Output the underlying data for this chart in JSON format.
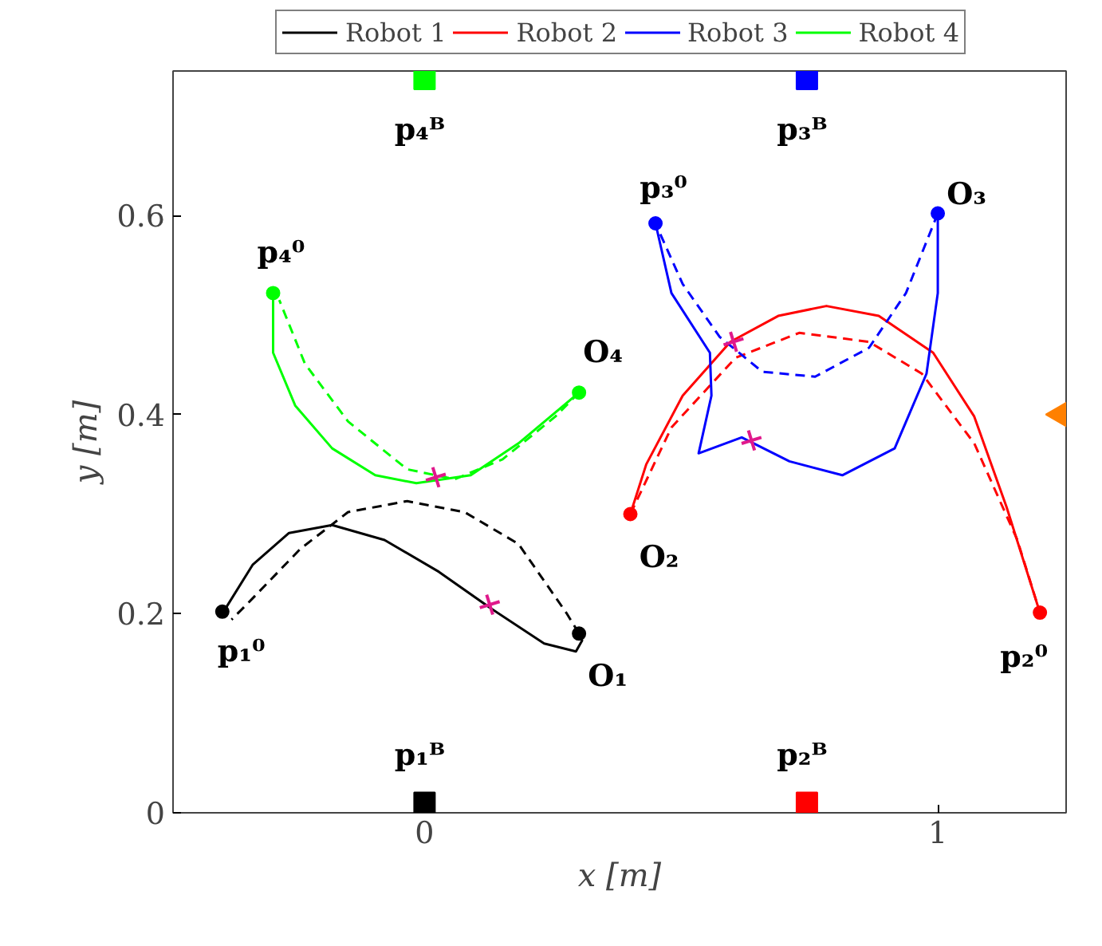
{
  "chart_data": {
    "type": "line",
    "xlabel": "x [m]",
    "ylabel": "y [m]",
    "xlim": [
      -0.49,
      1.25
    ],
    "ylim": [
      0,
      0.745
    ],
    "xticks": [
      0,
      1
    ],
    "yticks": [
      0,
      0.2,
      0.4,
      0.6
    ],
    "grid": false,
    "legend": "top",
    "line_style": "solid",
    "series": [
      {
        "name": "Robot 1",
        "color": "#000000",
        "x": [
          -0.394,
          -0.388,
          -0.335,
          -0.264,
          -0.18,
          -0.078,
          0.028,
          0.13,
          0.233,
          0.295,
          0.307,
          0.301
        ],
        "values": [
          0.202,
          0.205,
          0.249,
          0.281,
          0.289,
          0.274,
          0.242,
          0.205,
          0.17,
          0.162,
          0.173,
          0.18
        ]
      },
      {
        "color": "#000000",
        "line_style": "dashed",
        "x": [
          0.301,
          0.276,
          0.183,
          0.078,
          -0.034,
          -0.149,
          -0.242,
          -0.345,
          -0.376
        ],
        "values": [
          0.18,
          0.201,
          0.27,
          0.302,
          0.313,
          0.302,
          0.265,
          0.21,
          0.194
        ]
      },
      {
        "name": "Robot 2",
        "color": "#ff0000",
        "x": [
          1.199,
          1.134,
          1.071,
          0.991,
          0.885,
          0.783,
          0.689,
          0.596,
          0.503,
          0.432,
          0.401
        ],
        "values": [
          0.201,
          0.307,
          0.398,
          0.462,
          0.499,
          0.509,
          0.499,
          0.473,
          0.419,
          0.35,
          0.3
        ]
      },
      {
        "color": "#ff0000",
        "line_style": "dashed",
        "x": [
          0.401,
          0.481,
          0.606,
          0.73,
          0.866,
          0.969,
          1.071,
          1.155,
          1.199
        ],
        "values": [
          0.3,
          0.387,
          0.457,
          0.482,
          0.473,
          0.441,
          0.371,
          0.274,
          0.201
        ]
      },
      {
        "name": "Robot 3",
        "color": "#0000ff",
        "x": [
          0.45,
          0.481,
          0.556,
          0.559,
          0.534,
          0.618,
          0.711,
          0.814,
          0.916,
          0.978,
          1.0,
          1.0
        ],
        "values": [
          0.592,
          0.522,
          0.462,
          0.419,
          0.361,
          0.377,
          0.353,
          0.339,
          0.366,
          0.441,
          0.522,
          0.602
        ]
      },
      {
        "color": "#0000ff",
        "line_style": "dashed",
        "x": [
          1.0,
          0.938,
          0.866,
          0.761,
          0.658,
          0.575,
          0.503,
          0.45
        ],
        "values": [
          0.602,
          0.522,
          0.467,
          0.438,
          0.443,
          0.478,
          0.531,
          0.592
        ]
      },
      {
        "name": "Robot 4",
        "color": "#00ff00",
        "x": [
          -0.295,
          -0.295,
          -0.252,
          -0.18,
          -0.096,
          -0.016,
          0.09,
          0.183,
          0.301
        ],
        "values": [
          0.522,
          0.462,
          0.409,
          0.366,
          0.339,
          0.331,
          0.339,
          0.371,
          0.422
        ]
      },
      {
        "color": "#00ff00",
        "line_style": "dashed",
        "x": [
          0.301,
          0.255,
          0.152,
          0.059,
          -0.034,
          -0.149,
          -0.233,
          -0.283
        ],
        "values": [
          0.422,
          0.398,
          0.355,
          0.335,
          0.345,
          0.393,
          0.451,
          0.515
        ]
      },
      {
        "type": "scatter",
        "marker": "circle",
        "x": [
          -0.394,
          1.199,
          0.45,
          -0.295
        ],
        "values": [
          0.202,
          0.201,
          0.592,
          0.522
        ],
        "colors": [
          "#000000",
          "#ff0000",
          "#0000ff",
          "#00ff00"
        ]
      },
      {
        "type": "scatter",
        "marker": "circle",
        "x": [
          0.301,
          0.401,
          1.0,
          0.301
        ],
        "values": [
          0.18,
          0.3,
          0.602,
          0.422
        ],
        "colors": [
          "#000000",
          "#ff0000",
          "#0000ff",
          "#00ff00"
        ]
      },
      {
        "type": "scatter",
        "marker": "cross",
        "color": "#e0198c",
        "x": [
          0.127,
          0.602,
          0.637,
          0.022
        ],
        "values": [
          0.209,
          0.473,
          0.374,
          0.337
        ]
      },
      {
        "type": "scatter",
        "marker": "square",
        "x": [
          0,
          0.745,
          0.745,
          0
        ],
        "values": [
          0.01,
          0.01,
          0.737,
          0.737
        ],
        "colors": [
          "#000000",
          "#ff0000",
          "#0000ff",
          "#00ff00"
        ]
      },
      {
        "type": "scatter",
        "marker": "triangle",
        "color": "#ff8000",
        "x": [
          1.25
        ],
        "values": [
          0.4
        ]
      }
    ],
    "annotations": [
      {
        "text": "p₁⁰",
        "x": -0.394,
        "y": 0.202
      },
      {
        "text": "p₂⁰",
        "x": 1.199,
        "y": 0.201
      },
      {
        "text": "p₃⁰",
        "x": 0.45,
        "y": 0.592
      },
      {
        "text": "p₄⁰",
        "x": -0.295,
        "y": 0.522
      },
      {
        "text": "O₁",
        "x": 0.301,
        "y": 0.18
      },
      {
        "text": "O₂",
        "x": 0.401,
        "y": 0.3
      },
      {
        "text": "O₃",
        "x": 1.0,
        "y": 0.602
      },
      {
        "text": "O₄",
        "x": 0.301,
        "y": 0.422
      },
      {
        "text": "p₁ᴮ",
        "x": 0,
        "y": 0.01
      },
      {
        "text": "p₂ᴮ",
        "x": 0.745,
        "y": 0.01
      },
      {
        "text": "p₃ᴮ",
        "x": 0.745,
        "y": 0.737
      },
      {
        "text": "p₄ᴮ",
        "x": 0,
        "y": 0.737
      }
    ]
  }
}
